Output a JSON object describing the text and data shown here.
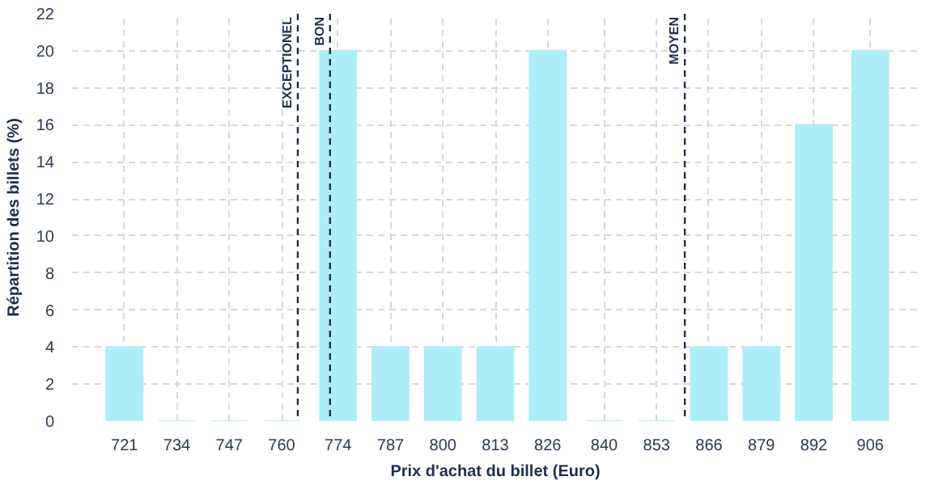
{
  "chart_data": {
    "type": "bar",
    "xlabel": "Prix d'achat du billet (Euro)",
    "ylabel": "Répartition des billets (%)",
    "x": [
      721,
      734,
      747,
      760,
      774,
      787,
      800,
      813,
      826,
      840,
      853,
      866,
      879,
      892,
      906
    ],
    "values": [
      4,
      0,
      0,
      0,
      20,
      4,
      4,
      4,
      20,
      0,
      0,
      4,
      4,
      16,
      20
    ],
    "color": "#aeeef8",
    "xlim": [
      708,
      918
    ],
    "xticks": [
      721,
      734,
      747,
      760,
      774,
      787,
      800,
      813,
      826,
      840,
      853,
      866,
      879,
      892,
      906
    ],
    "ylim": [
      0,
      22
    ],
    "yticks": [
      0,
      2,
      4,
      6,
      8,
      10,
      12,
      14,
      16,
      18,
      20,
      22
    ],
    "grid": true,
    "ref_lines": [
      {
        "axis": "x",
        "value": 764,
        "label": "EXCEPTIONEL",
        "color": "#1f2d4d",
        "line_style": "dashed"
      },
      {
        "axis": "x",
        "value": 772,
        "label": "BON",
        "color": "#1f2d4d",
        "line_style": "dashed"
      },
      {
        "axis": "x",
        "value": 860,
        "label": "MOYEN",
        "color": "#1f2d4d",
        "line_style": "dashed"
      }
    ]
  }
}
